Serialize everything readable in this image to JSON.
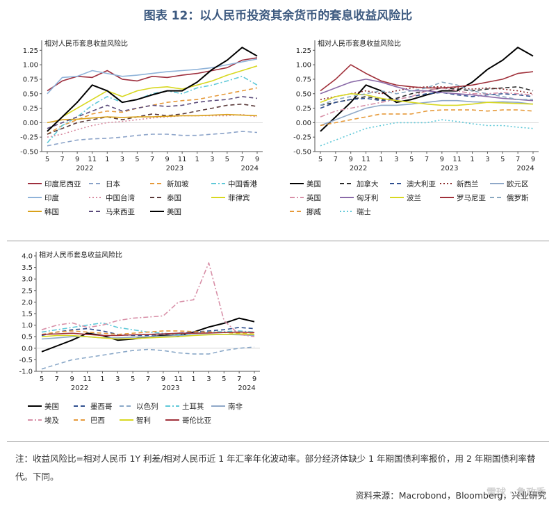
{
  "page": {
    "title": "图表 12：以人民币投资其余货币的套息收益风险比",
    "note": "注：收益风险比=相对人民币 1Y 利差/相对人民币近 1 年汇率年化波动率。部分经济体缺少 1 年期国债利率报价，用 2 年期国债利率替代。下同。",
    "source": "资料来源：Macrobond，Bloomberg，兴业研究",
    "watermark": "雪球 · 鲁政委"
  },
  "chart_data": [
    {
      "type": "line",
      "panel_label": "相对人民币套息收益风险比",
      "ylim": [
        -0.5,
        1.35
      ],
      "yticks": [
        "1.25",
        "1.00",
        "0.75",
        "0.50",
        "0.25",
        "0.00",
        "-0.25",
        "-0.50"
      ],
      "month_ticks": [
        "5",
        "7",
        "9",
        "11",
        "1",
        "3",
        "5",
        "7",
        "9",
        "11",
        "1",
        "3",
        "5",
        "7",
        "9"
      ],
      "year_labels": [
        "2022",
        "2023",
        "2024"
      ],
      "legend": {
        "ncols": 4
      },
      "series": [
        {
          "name": "印度尼西亚",
          "color": "#9e2f3e",
          "dash": "solid",
          "values": [
            0.55,
            0.72,
            0.8,
            0.78,
            0.9,
            0.75,
            0.72,
            0.8,
            0.78,
            0.82,
            0.85,
            0.9,
            0.95,
            1.08,
            1.12
          ]
        },
        {
          "name": "日本",
          "color": "#8aa2c8",
          "dash": "dash",
          "values": [
            -0.4,
            -0.35,
            -0.3,
            -0.28,
            -0.27,
            -0.25,
            -0.22,
            -0.2,
            -0.2,
            -0.22,
            -0.22,
            -0.2,
            -0.18,
            -0.15,
            -0.17
          ]
        },
        {
          "name": "新加坡",
          "color": "#e69a3a",
          "dash": "dash",
          "values": [
            -0.2,
            -0.05,
            0.05,
            0.15,
            0.2,
            0.18,
            0.25,
            0.3,
            0.35,
            0.38,
            0.4,
            0.45,
            0.5,
            0.55,
            0.6
          ]
        },
        {
          "name": "中国香港",
          "color": "#5ec8d8",
          "dash": "dashdot",
          "values": [
            -0.35,
            -0.05,
            0.1,
            0.3,
            0.45,
            0.35,
            0.4,
            0.5,
            0.55,
            0.5,
            0.6,
            0.65,
            0.72,
            0.8,
            0.65
          ]
        },
        {
          "name": "印度",
          "color": "#8fb3d9",
          "dash": "solid",
          "values": [
            0.5,
            0.78,
            0.8,
            0.9,
            0.85,
            0.8,
            0.82,
            0.85,
            0.88,
            0.9,
            0.92,
            0.95,
            1.0,
            1.05,
            1.1
          ]
        },
        {
          "name": "中国台湾",
          "color": "#d88aa0",
          "dash": "dot",
          "values": [
            -0.25,
            -0.2,
            -0.12,
            -0.05,
            0.0,
            0.02,
            0.05,
            0.08,
            0.1,
            0.12,
            0.12,
            0.12,
            0.12,
            0.14,
            0.1
          ]
        },
        {
          "name": "泰国",
          "color": "#5a3a3a",
          "dash": "dash",
          "values": [
            -0.2,
            -0.1,
            0.0,
            0.05,
            0.1,
            0.05,
            0.1,
            0.15,
            0.12,
            0.15,
            0.2,
            0.25,
            0.3,
            0.32,
            0.28
          ]
        },
        {
          "name": "菲律宾",
          "color": "#d8d820",
          "dash": "solid",
          "values": [
            -0.15,
            0.1,
            0.25,
            0.4,
            0.55,
            0.45,
            0.55,
            0.6,
            0.62,
            0.58,
            0.65,
            0.72,
            0.82,
            0.9,
            0.98
          ]
        },
        {
          "name": "韩国",
          "color": "#d9a11a",
          "dash": "solid",
          "values": [
            0.0,
            0.05,
            0.06,
            0.08,
            0.1,
            0.09,
            0.1,
            0.1,
            0.11,
            0.12,
            0.12,
            0.13,
            0.14,
            0.13,
            0.12
          ]
        },
        {
          "name": "马来西亚",
          "color": "#5a4a7a",
          "dash": "dash",
          "values": [
            -0.1,
            0.0,
            0.1,
            0.2,
            0.3,
            0.2,
            0.25,
            0.3,
            0.28,
            0.3,
            0.35,
            0.38,
            0.4,
            0.45,
            0.42
          ]
        },
        {
          "name": "美国",
          "color": "#000000",
          "dash": "solid",
          "values": [
            -0.15,
            0.1,
            0.35,
            0.65,
            0.55,
            0.35,
            0.4,
            0.48,
            0.55,
            0.55,
            0.7,
            0.92,
            1.08,
            1.3,
            1.15
          ]
        }
      ]
    },
    {
      "type": "line",
      "panel_label": "相对人民币套息收益风险比",
      "ylim": [
        -0.5,
        1.35
      ],
      "yticks": [
        "1.25",
        "1.00",
        "0.75",
        "0.50",
        "0.25",
        "0.00",
        "-0.25",
        "-0.50"
      ],
      "month_ticks": [
        "5",
        "7",
        "9",
        "11",
        "1",
        "3",
        "5",
        "7",
        "9",
        "11",
        "1",
        "3",
        "5",
        "7",
        "9"
      ],
      "year_labels": [
        "2022",
        "2023",
        "2024"
      ],
      "legend": {
        "ncols": 5
      },
      "series": [
        {
          "name": "美国",
          "color": "#000000",
          "dash": "solid",
          "values": [
            -0.15,
            0.1,
            0.35,
            0.65,
            0.55,
            0.35,
            0.4,
            0.48,
            0.55,
            0.55,
            0.7,
            0.92,
            1.08,
            1.3,
            1.15
          ]
        },
        {
          "name": "加拿大",
          "color": "#2a2a2a",
          "dash": "dash",
          "values": [
            0.3,
            0.35,
            0.4,
            0.45,
            0.4,
            0.42,
            0.5,
            0.55,
            0.6,
            0.58,
            0.55,
            0.58,
            0.6,
            0.62,
            0.55
          ]
        },
        {
          "name": "澳大利亚",
          "color": "#2f4f8f",
          "dash": "dash",
          "values": [
            0.25,
            0.35,
            0.4,
            0.42,
            0.38,
            0.4,
            0.45,
            0.5,
            0.52,
            0.48,
            0.45,
            0.48,
            0.5,
            0.48,
            0.45
          ]
        },
        {
          "name": "新西兰",
          "color": "#8a2a2a",
          "dash": "dot",
          "values": [
            0.4,
            0.45,
            0.5,
            0.55,
            0.5,
            0.55,
            0.6,
            0.62,
            0.62,
            0.6,
            0.58,
            0.6,
            0.58,
            0.55,
            0.5
          ]
        },
        {
          "name": "欧元区",
          "color": "#8fa8c8",
          "dash": "solid",
          "values": [
            -0.05,
            0.05,
            0.15,
            0.25,
            0.3,
            0.3,
            0.32,
            0.35,
            0.38,
            0.38,
            0.36,
            0.35,
            0.36,
            0.35,
            0.32
          ]
        },
        {
          "name": "英国",
          "color": "#d890a8",
          "dash": "dashdot",
          "values": [
            0.1,
            0.2,
            0.25,
            0.3,
            0.35,
            0.4,
            0.45,
            0.55,
            0.6,
            0.55,
            0.5,
            0.5,
            0.52,
            0.5,
            0.48
          ]
        },
        {
          "name": "匈牙利",
          "color": "#8a6aa8",
          "dash": "solid",
          "values": [
            0.5,
            0.6,
            0.7,
            0.75,
            0.7,
            0.62,
            0.55,
            0.55,
            0.52,
            0.5,
            0.48,
            0.45,
            0.42,
            0.4,
            0.38
          ]
        },
        {
          "name": "波兰",
          "color": "#d8d820",
          "dash": "solid",
          "values": [
            0.35,
            0.45,
            0.5,
            0.48,
            0.42,
            0.38,
            0.35,
            0.32,
            0.3,
            0.3,
            0.32,
            0.35,
            0.34,
            0.33,
            0.32
          ]
        },
        {
          "name": "罗马尼亚",
          "color": "#a0303a",
          "dash": "solid",
          "values": [
            0.55,
            0.75,
            1.0,
            0.85,
            0.72,
            0.65,
            0.62,
            0.6,
            0.6,
            0.62,
            0.65,
            0.7,
            0.75,
            0.85,
            0.88
          ]
        },
        {
          "name": "俄罗斯",
          "color": "#8aa8c0",
          "dash": "dash",
          "values": [
            0.3,
            0.4,
            0.45,
            0.5,
            0.55,
            0.5,
            0.55,
            0.6,
            0.7,
            0.65,
            0.55,
            0.5,
            0.45,
            0.4,
            0.4
          ]
        },
        {
          "name": "挪威",
          "color": "#e69a3a",
          "dash": "dash",
          "values": [
            -0.05,
            0.0,
            0.05,
            0.1,
            0.15,
            0.15,
            0.15,
            0.2,
            0.22,
            0.22,
            0.22,
            0.2,
            0.22,
            0.22,
            0.2
          ]
        },
        {
          "name": "瑞士",
          "color": "#5ec8d8",
          "dash": "dot",
          "values": [
            -0.4,
            -0.3,
            -0.2,
            -0.1,
            -0.05,
            0.0,
            0.0,
            0.0,
            0.05,
            0.02,
            -0.02,
            -0.05,
            -0.05,
            -0.08,
            -0.1
          ]
        }
      ]
    },
    {
      "type": "line",
      "panel_label": "相对人民币套息收益风险比",
      "ylim": [
        -1.0,
        4.0
      ],
      "yticks": [
        "4.0",
        "3.5",
        "3.0",
        "2.5",
        "2.0",
        "1.5",
        "1.0",
        "0.5",
        "0.0",
        "-0.5",
        "-1.0"
      ],
      "month_ticks": [
        "5",
        "7",
        "9",
        "11",
        "1",
        "3",
        "5",
        "7",
        "9",
        "11",
        "1",
        "3",
        "5",
        "7",
        "9"
      ],
      "year_labels": [
        "2022",
        "2023",
        "2024"
      ],
      "legend": {
        "ncols": 5
      },
      "series": [
        {
          "name": "美国",
          "color": "#000000",
          "dash": "solid",
          "values": [
            -0.15,
            0.1,
            0.35,
            0.65,
            0.55,
            0.35,
            0.4,
            0.48,
            0.55,
            0.55,
            0.7,
            0.92,
            1.08,
            1.3,
            1.15
          ]
        },
        {
          "name": "墨西哥",
          "color": "#2f4f8f",
          "dash": "dash",
          "values": [
            0.55,
            0.7,
            0.8,
            0.85,
            0.75,
            0.6,
            0.55,
            0.55,
            0.6,
            0.65,
            0.7,
            0.75,
            0.8,
            0.9,
            0.85
          ]
        },
        {
          "name": "以色列",
          "color": "#8aa8c8",
          "dash": "dash",
          "values": [
            -0.9,
            -0.7,
            -0.5,
            -0.4,
            -0.3,
            -0.2,
            -0.1,
            -0.05,
            -0.1,
            -0.2,
            -0.25,
            -0.25,
            -0.1,
            0.0,
            0.05
          ]
        },
        {
          "name": "土耳其",
          "color": "#5ec8d8",
          "dash": "dashdot",
          "values": [
            0.7,
            0.8,
            0.9,
            1.0,
            1.1,
            0.9,
            0.8,
            0.7,
            0.65,
            0.6,
            0.65,
            0.7,
            0.72,
            0.75,
            0.7
          ]
        },
        {
          "name": "南非",
          "color": "#8fa8c8",
          "dash": "solid",
          "values": [
            0.4,
            0.45,
            0.5,
            0.5,
            0.45,
            0.45,
            0.48,
            0.5,
            0.52,
            0.55,
            0.58,
            0.6,
            0.6,
            0.58,
            0.55
          ]
        },
        {
          "name": "埃及",
          "color": "#d890a8",
          "dash": "dashdot",
          "values": [
            0.8,
            1.0,
            1.1,
            0.9,
            1.0,
            1.2,
            1.3,
            1.35,
            1.4,
            2.0,
            2.1,
            3.7,
            1.2,
            0.6,
            0.5
          ]
        },
        {
          "name": "巴西",
          "color": "#e69a3a",
          "dash": "dash",
          "values": [
            0.6,
            0.7,
            0.75,
            0.7,
            0.65,
            0.6,
            0.65,
            0.7,
            0.75,
            0.75,
            0.72,
            0.7,
            0.68,
            0.65,
            0.62
          ]
        },
        {
          "name": "智利",
          "color": "#d8d820",
          "dash": "solid",
          "values": [
            0.5,
            0.55,
            0.55,
            0.5,
            0.45,
            0.4,
            0.42,
            0.45,
            0.48,
            0.5,
            0.55,
            0.58,
            0.6,
            0.62,
            0.6
          ]
        },
        {
          "name": "哥伦比亚",
          "color": "#a0303a",
          "dash": "solid",
          "values": [
            0.6,
            0.62,
            0.65,
            0.6,
            0.55,
            0.55,
            0.58,
            0.6,
            0.62,
            0.65,
            0.65,
            0.66,
            0.68,
            0.7,
            0.68
          ]
        }
      ]
    }
  ]
}
